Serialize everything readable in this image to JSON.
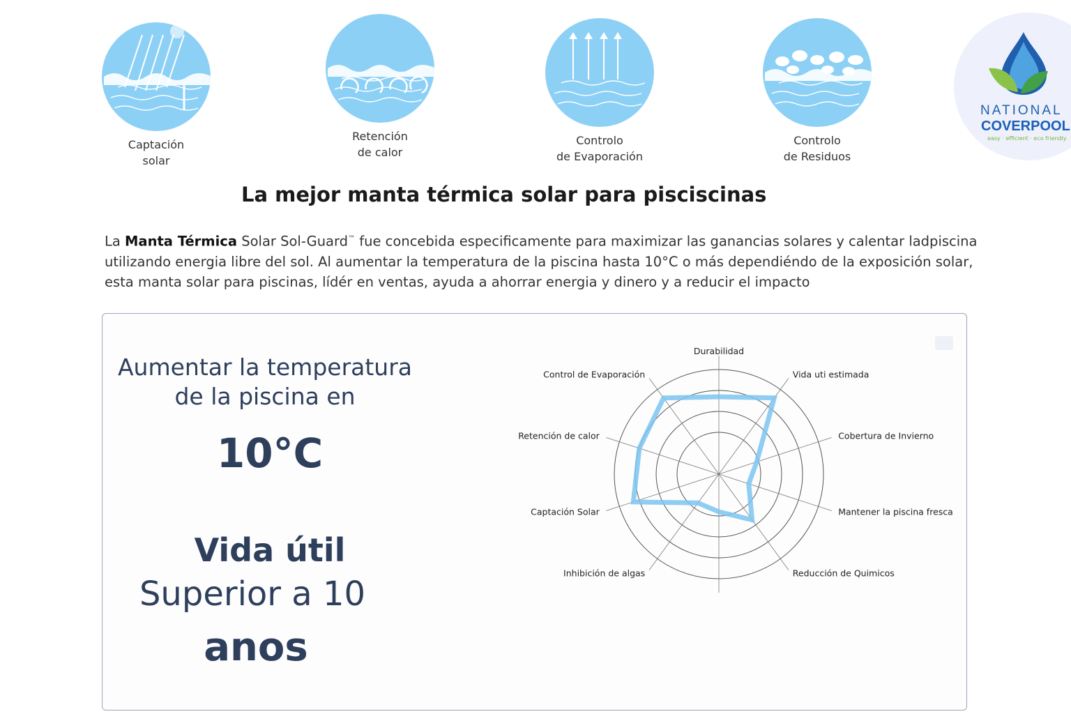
{
  "features": [
    {
      "label": "Captación\nsolar",
      "icon": "solar-capture-icon"
    },
    {
      "label": "Retención\nde calor",
      "icon": "heat-retention-icon"
    },
    {
      "label": "Controlo\nde Evaporación",
      "icon": "evaporation-control-icon"
    },
    {
      "label": "Controlo\nde Residuos",
      "icon": "debris-control-icon"
    }
  ],
  "logo": {
    "line1": "NATIONAL",
    "line2": "COVERPOOL",
    "tagline": "easy · efficient · eco friendly"
  },
  "heading": "La mejor manta térmica solar para pisciscinas",
  "paragraph": {
    "pre": "La ",
    "bold": "Manta Térmica",
    "mid": " Solar Sol-Guard",
    "tm": "™",
    "rest": " fue concebida especificamente para maximizar las ganancias solares y calentar ladpiscina utilizando energia libre del sol. Al aumentar la temperatura de la piscina hasta 10°C o más dependiéndo de la exposición solar, esta manta solar para piscinas, lídér en ventas, ayuda a ahorrar energia y dinero y a reducir el impacto"
  },
  "card": {
    "temp_line1": "Aumentar la temperatura",
    "temp_line2": "de la piscina en",
    "temp_value": "10°C",
    "life_title": "Vida útil",
    "life_line": "Superior a 10",
    "life_unit": "anos"
  },
  "colors": {
    "accent": "#8dd0f5",
    "series": "#7cc4f0",
    "text_dark": "#2e3f5c"
  },
  "chart_data": {
    "type": "radar",
    "categories": [
      "Durabilidad",
      "Vida uti estimada",
      "Cobertura de Invierno",
      "Mantener la piscina fresca",
      "Reducción de Quimicos",
      "",
      "Inhibición de algas",
      "Captación Solar",
      "Retención de calor",
      "Control de Evaporación"
    ],
    "values": [
      3.7,
      4.5,
      1.9,
      1.5,
      2.7,
      1.8,
      1.7,
      4.3,
      4.0,
      4.5
    ],
    "rlim": [
      0,
      5
    ],
    "rings": [
      2,
      3,
      4,
      5
    ],
    "grid": true
  }
}
